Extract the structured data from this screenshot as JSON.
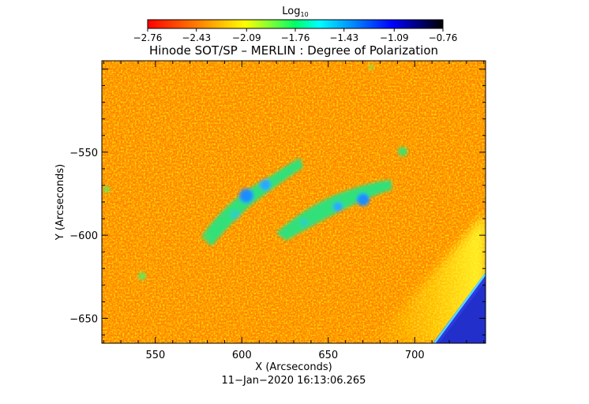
{
  "chart_data": {
    "type": "heatmap",
    "title": "Hinode SOT/SP – MERLIN : Degree of Polarization",
    "colorbar": {
      "label_base": "Log",
      "label_sub": "10",
      "ticks": [
        "−2.76",
        "−2.43",
        "−2.09",
        "−1.76",
        "−1.43",
        "−1.09",
        "−0.76"
      ],
      "range": [
        -2.76,
        -0.76
      ],
      "colormap": [
        "#ff0000",
        "#ff7f00",
        "#ffff00",
        "#7fff00",
        "#00ffff",
        "#0000ff",
        "#000000"
      ]
    },
    "xlabel": "X (Arcseconds)",
    "ylabel": "Y (Arcseconds)",
    "xlim": [
      519,
      741
    ],
    "ylim": [
      -665,
      -495
    ],
    "xticks": [
      550,
      600,
      650,
      700
    ],
    "xtick_labels": [
      "550",
      "600",
      "650",
      "700"
    ],
    "yticks": [
      -550,
      -600,
      -650
    ],
    "ytick_labels": [
      "−550",
      "−600",
      "−650"
    ],
    "timestamp": "11−Jan−2020 16:13:06.265"
  }
}
